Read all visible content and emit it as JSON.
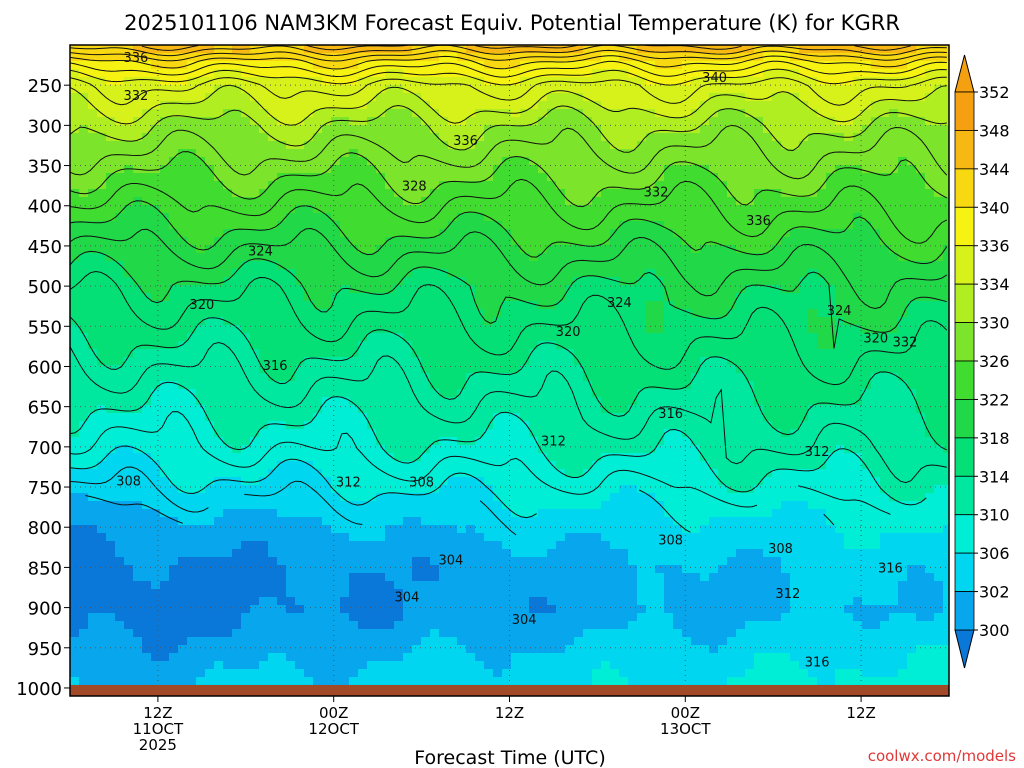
{
  "chart_data": {
    "type": "heatmap",
    "title": "2025101106 NAM3KM Forecast Equiv. Potential Temperature (K) for KGRR",
    "xlabel": "Forecast Time (UTC)",
    "ylabel": "",
    "y_ticks": [
      "250",
      "300",
      "350",
      "400",
      "450",
      "500",
      "550",
      "600",
      "650",
      "700",
      "750",
      "800",
      "850",
      "900",
      "950",
      "1000"
    ],
    "x_ticks": [
      {
        "line1": "12Z",
        "line2": "11OCT",
        "line3": "2025",
        "hour": 6
      },
      {
        "line1": "00Z",
        "line2": "12OCT",
        "line3": "",
        "hour": 18
      },
      {
        "line1": "12Z",
        "line2": "",
        "line3": "",
        "hour": 30
      },
      {
        "line1": "00Z",
        "line2": "13OCT",
        "line3": "",
        "hour": 42
      },
      {
        "line1": "12Z",
        "line2": "",
        "line3": "",
        "hour": 54
      }
    ],
    "x_range_hours": [
      0,
      60
    ],
    "y_range_hpa": [
      200,
      1010
    ],
    "ground_level_hpa": 1000,
    "colorbar": {
      "labels": [
        "300",
        "302",
        "306",
        "310",
        "314",
        "318",
        "322",
        "326",
        "330",
        "334",
        "336",
        "340",
        "344",
        "348",
        "352"
      ],
      "bins": [
        {
          "lo": 298,
          "hi": 302,
          "color": "#0a78d8"
        },
        {
          "lo": 302,
          "hi": 306,
          "color": "#08a6ec"
        },
        {
          "lo": 306,
          "hi": 310,
          "color": "#00d6f0"
        },
        {
          "lo": 310,
          "hi": 314,
          "color": "#00eed6"
        },
        {
          "lo": 314,
          "hi": 318,
          "color": "#00e8a0"
        },
        {
          "lo": 318,
          "hi": 322,
          "color": "#04e076"
        },
        {
          "lo": 322,
          "hi": 326,
          "color": "#20d848"
        },
        {
          "lo": 326,
          "hi": 330,
          "color": "#40dc30"
        },
        {
          "lo": 330,
          "hi": 334,
          "color": "#7ce42a"
        },
        {
          "lo": 334,
          "hi": 336,
          "color": "#b0ee22"
        },
        {
          "lo": 336,
          "hi": 340,
          "color": "#d6f21a"
        },
        {
          "lo": 340,
          "hi": 344,
          "color": "#f6f212"
        },
        {
          "lo": 344,
          "hi": 348,
          "color": "#f8d810"
        },
        {
          "lo": 348,
          "hi": 352,
          "color": "#f8b814"
        },
        {
          "lo": 352,
          "hi": 356,
          "color": "#f4a010"
        }
      ]
    },
    "theta_e_profile": [
      {
        "p": 200,
        "k": 350
      },
      {
        "p": 220,
        "k": 344
      },
      {
        "p": 250,
        "k": 338
      },
      {
        "p": 300,
        "k": 334
      },
      {
        "p": 350,
        "k": 331
      },
      {
        "p": 400,
        "k": 328
      },
      {
        "p": 450,
        "k": 325
      },
      {
        "p": 500,
        "k": 322
      },
      {
        "p": 550,
        "k": 320
      },
      {
        "p": 600,
        "k": 318
      },
      {
        "p": 650,
        "k": 316
      },
      {
        "p": 700,
        "k": 314
      },
      {
        "p": 750,
        "k": 311
      },
      {
        "p": 800,
        "k": 307
      },
      {
        "p": 850,
        "k": 304
      },
      {
        "p": 900,
        "k": 303
      },
      {
        "p": 950,
        "k": 306
      },
      {
        "p": 1000,
        "k": 309
      }
    ],
    "time_trend_k_per_hour": 0.12,
    "contour_labels": [
      {
        "text": "336",
        "t": 4.5,
        "p": 215
      },
      {
        "text": "332",
        "t": 4.5,
        "p": 262
      },
      {
        "text": "336",
        "t": 27,
        "p": 318
      },
      {
        "text": "340",
        "t": 44,
        "p": 240
      },
      {
        "text": "328",
        "t": 23.5,
        "p": 375
      },
      {
        "text": "332",
        "t": 40,
        "p": 382
      },
      {
        "text": "336",
        "t": 47,
        "p": 418
      },
      {
        "text": "324",
        "t": 13,
        "p": 456
      },
      {
        "text": "324",
        "t": 37.5,
        "p": 520
      },
      {
        "text": "324",
        "t": 52.5,
        "p": 530
      },
      {
        "text": "320",
        "t": 9,
        "p": 522
      },
      {
        "text": "320",
        "t": 34,
        "p": 556
      },
      {
        "text": "320",
        "t": 55,
        "p": 564
      },
      {
        "text": "332",
        "t": 57,
        "p": 569
      },
      {
        "text": "316",
        "t": 14,
        "p": 598
      },
      {
        "text": "316",
        "t": 41,
        "p": 658
      },
      {
        "text": "312",
        "t": 33,
        "p": 692
      },
      {
        "text": "312",
        "t": 51,
        "p": 705
      },
      {
        "text": "312",
        "t": 19,
        "p": 743
      },
      {
        "text": "308",
        "t": 4,
        "p": 742
      },
      {
        "text": "308",
        "t": 24,
        "p": 743
      },
      {
        "text": "308",
        "t": 41,
        "p": 815
      },
      {
        "text": "308",
        "t": 48.5,
        "p": 826
      },
      {
        "text": "304",
        "t": 26,
        "p": 840
      },
      {
        "text": "304",
        "t": 23,
        "p": 886
      },
      {
        "text": "304",
        "t": 31,
        "p": 914
      },
      {
        "text": "312",
        "t": 49,
        "p": 882
      },
      {
        "text": "316",
        "t": 56,
        "p": 850
      },
      {
        "text": "316",
        "t": 51,
        "p": 967
      }
    ]
  },
  "credit": "coolwx.com/models"
}
